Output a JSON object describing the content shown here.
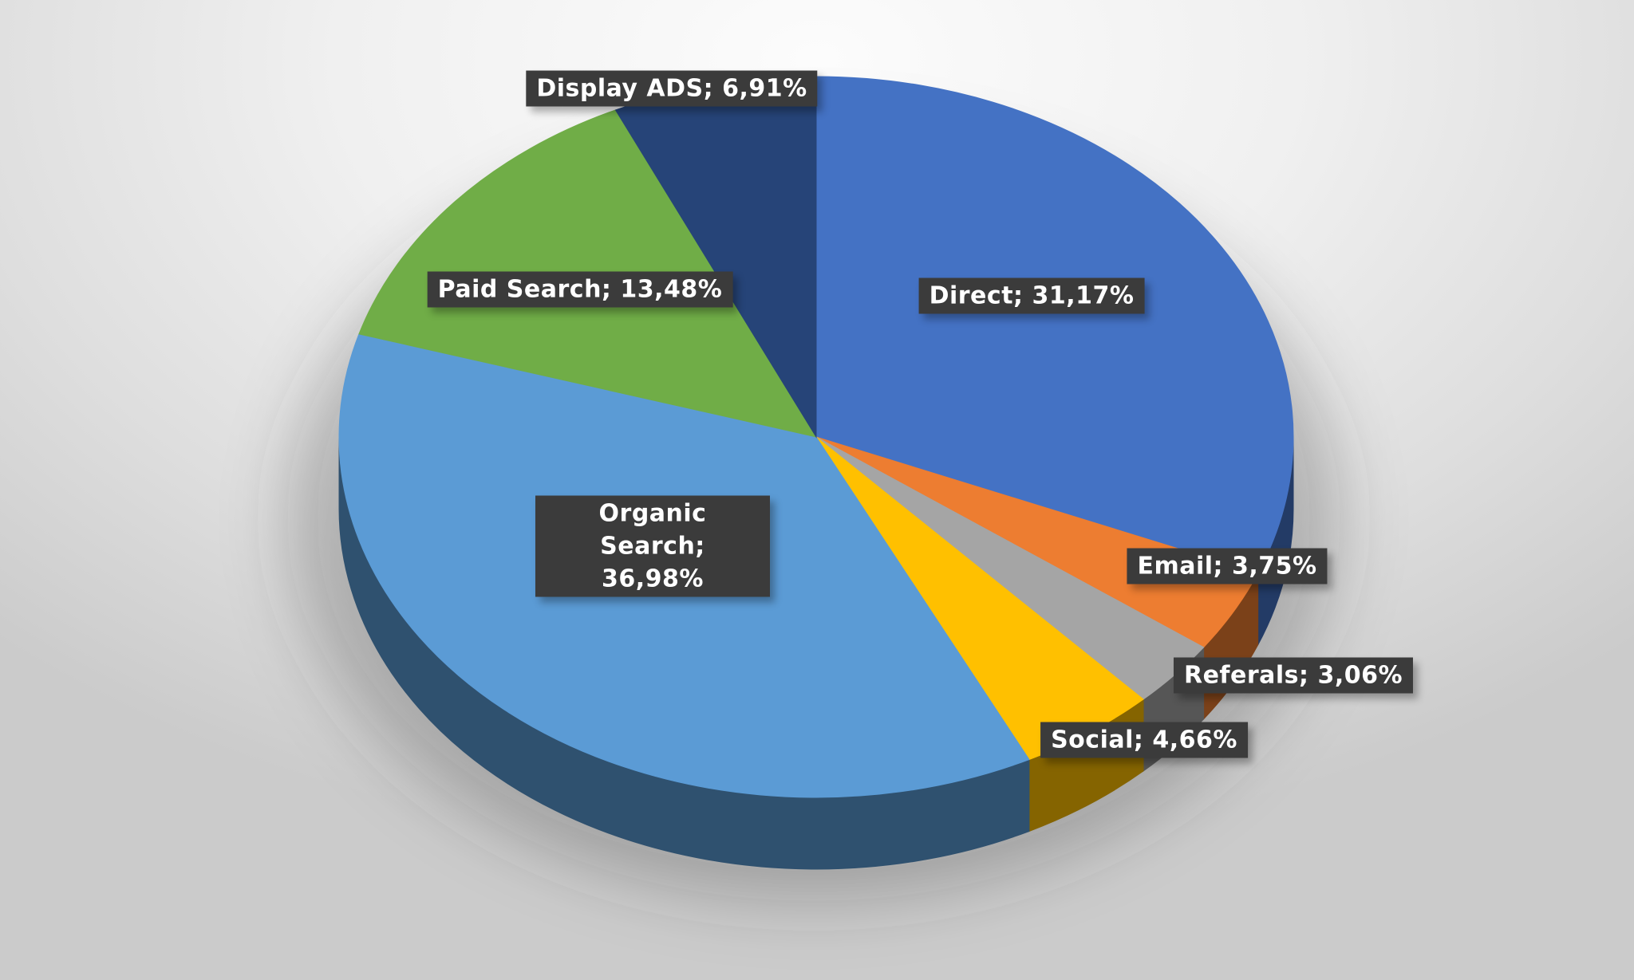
{
  "chart_data": {
    "type": "pie",
    "style": "3d",
    "direction": "clockwise",
    "start_angle_deg": 0,
    "legend": "none",
    "grid": false,
    "value_unit": "%",
    "decimal_separator": ",",
    "label_format": "{name}; {value}%",
    "label_box_color": "#3B3B3B",
    "label_text_color": "#FFFFFF",
    "background_top_color": "#FCFCFC",
    "background_edge_color": "#CBCBCB",
    "slices": [
      {
        "name": "Direct",
        "value": 31.17,
        "display": "Direct; 31,17%",
        "color": "#4472C4"
      },
      {
        "name": "Email",
        "value": 3.75,
        "display": "Email; 3,75%",
        "color": "#ED7D31"
      },
      {
        "name": "Referals",
        "value": 3.06,
        "display": "Referals; 3,06%",
        "color": "#A5A5A5"
      },
      {
        "name": "Social",
        "value": 4.66,
        "display": "Social; 4,66%",
        "color": "#FFC000"
      },
      {
        "name": "Organic Search",
        "value": 36.98,
        "display": "Organic Search; 36,98%",
        "color": "#5B9BD5"
      },
      {
        "name": "Paid Search",
        "value": 13.48,
        "display": "Paid Search; 13,48%",
        "color": "#70AD47"
      },
      {
        "name": "Display ADS",
        "value": 6.91,
        "display": "Display ADS; 6,91%",
        "color": "#264478"
      }
    ]
  }
}
